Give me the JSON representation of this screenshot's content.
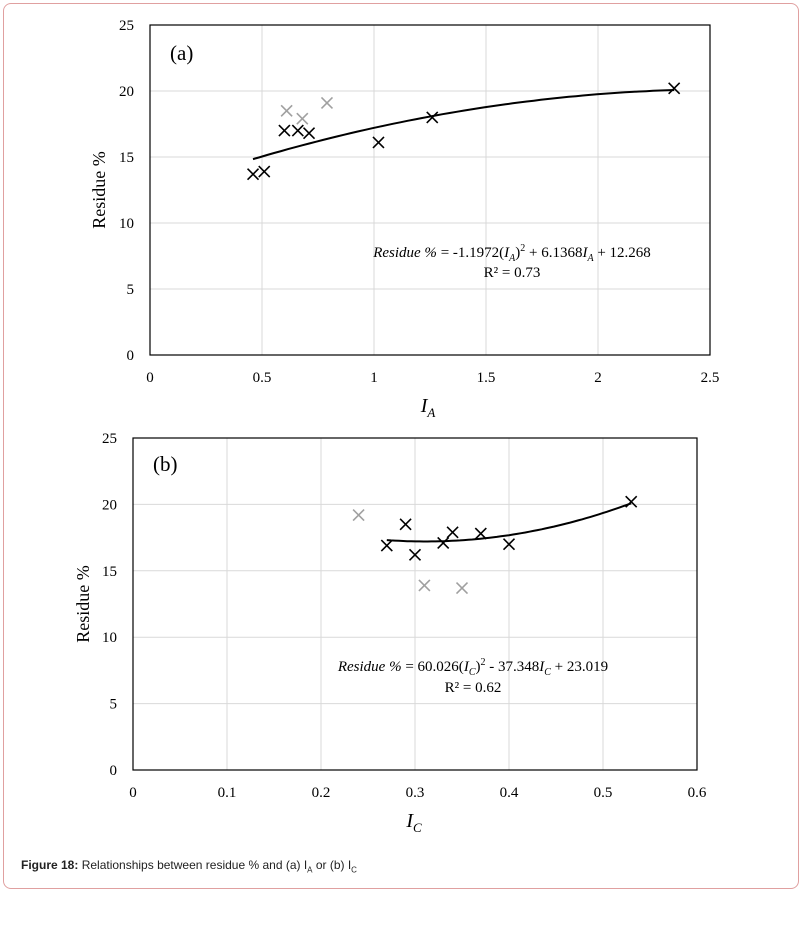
{
  "chart_data": [
    {
      "type": "scatter",
      "panel_label": "(a)",
      "xlabel_base": "I",
      "xlabel_sub": "A",
      "ylabel": "Residue %",
      "xlim": [
        0,
        2.5
      ],
      "ylim": [
        0,
        25
      ],
      "x_ticks": [
        0,
        0.5,
        1,
        1.5,
        2,
        2.5
      ],
      "x_tick_labels": [
        "0",
        "0.5",
        "1",
        "1.5",
        "2",
        "2.5"
      ],
      "y_ticks": [
        0,
        5,
        10,
        15,
        20,
        25
      ],
      "y_tick_labels": [
        "0",
        "5",
        "10",
        "15",
        "20",
        "25"
      ],
      "grid": true,
      "series": [
        {
          "marker": "x",
          "color": "#000000",
          "points": [
            [
              0.46,
              13.7
            ],
            [
              0.51,
              13.9
            ],
            [
              0.6,
              17.0
            ],
            [
              0.66,
              17.0
            ],
            [
              0.71,
              16.8
            ],
            [
              1.02,
              16.1
            ],
            [
              1.26,
              18.0
            ],
            [
              2.34,
              20.2
            ]
          ]
        },
        {
          "marker": "x",
          "color": "#a0a0a0",
          "points": [
            [
              0.61,
              18.5
            ],
            [
              0.68,
              17.9
            ],
            [
              0.79,
              19.1
            ]
          ]
        }
      ],
      "trendline": {
        "coefficients": [
          -1.1972,
          6.1368,
          12.268
        ],
        "x_range": [
          0.46,
          2.34
        ]
      },
      "equation_text": {
        "lhs": "Residue %",
        "eq": " = -1.1972(",
        "var": "I",
        "sub": "A",
        "mid": " + 6.1368",
        "tail": " + 12.268"
      },
      "r2_text": "R² = 0.73"
    },
    {
      "type": "scatter",
      "panel_label": "(b)",
      "xlabel_base": "I",
      "xlabel_sub": "C",
      "ylabel": "Residue %",
      "xlim": [
        0,
        0.6
      ],
      "ylim": [
        0,
        25
      ],
      "x_ticks": [
        0,
        0.1,
        0.2,
        0.3,
        0.4,
        0.5,
        0.6
      ],
      "x_tick_labels": [
        "0",
        "0.1",
        "0.2",
        "0.3",
        "0.4",
        "0.5",
        "0.6"
      ],
      "y_ticks": [
        0,
        5,
        10,
        15,
        20,
        25
      ],
      "y_tick_labels": [
        "0",
        "5",
        "10",
        "15",
        "20",
        "25"
      ],
      "grid": true,
      "series": [
        {
          "marker": "x",
          "color": "#000000",
          "points": [
            [
              0.27,
              16.9
            ],
            [
              0.29,
              18.5
            ],
            [
              0.3,
              16.2
            ],
            [
              0.33,
              17.1
            ],
            [
              0.34,
              17.9
            ],
            [
              0.37,
              17.8
            ],
            [
              0.4,
              17.0
            ],
            [
              0.53,
              20.2
            ]
          ]
        },
        {
          "marker": "x",
          "color": "#a0a0a0",
          "points": [
            [
              0.24,
              19.2
            ],
            [
              0.31,
              13.9
            ],
            [
              0.35,
              13.7
            ]
          ]
        }
      ],
      "trendline": {
        "coefficients": [
          60.026,
          -37.348,
          23.019
        ],
        "x_range": [
          0.27,
          0.53
        ]
      },
      "equation_text": {
        "lhs": "Residue %",
        "eq": " = 60.026(",
        "var": "I",
        "sub": "C",
        "mid": " - 37.348",
        "tail": " + 23.019"
      },
      "r2_text": "R² = 0.62"
    }
  ],
  "caption": {
    "bold": "Figure 18:",
    "text": " Relationships between residue % and (a) I",
    "sub_a": "A",
    "middle": " or (b) I",
    "sub_c": "C"
  }
}
